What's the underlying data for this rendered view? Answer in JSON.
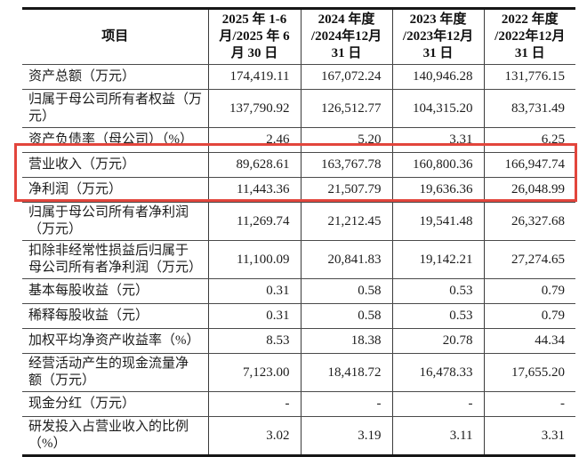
{
  "table": {
    "header": {
      "item_label": "项目",
      "periods": [
        "2025 年 1-6\n月/2025 年 6\n月 30 日",
        "2024 年度\n/2024年12月\n31 日",
        "2023 年度\n/2023年12月\n31 日",
        "2022 年度\n/2022年12月\n31 日"
      ]
    },
    "rows": [
      {
        "label": "资产总额（万元）",
        "values": [
          "174,419.11",
          "167,072.24",
          "140,946.28",
          "131,776.15"
        ],
        "highlighted": false
      },
      {
        "label": "归属于母公司所有者权益（万\n元）",
        "values": [
          "137,790.92",
          "126,512.77",
          "104,315.20",
          "83,731.49"
        ],
        "highlighted": false
      },
      {
        "label": "资产负债率（母公司）（%）",
        "values": [
          "2.46",
          "5.20",
          "3.31",
          "6.25"
        ],
        "highlighted": false
      },
      {
        "label": "营业收入（万元）",
        "values": [
          "89,628.61",
          "163,767.78",
          "160,800.36",
          "166,947.74"
        ],
        "highlighted": true
      },
      {
        "label": "净利润（万元）",
        "values": [
          "11,443.36",
          "21,507.79",
          "19,636.36",
          "26,048.99"
        ],
        "highlighted": true
      },
      {
        "label": "归属于母公司所有者净利润\n（万元）",
        "values": [
          "11,269.74",
          "21,212.45",
          "19,541.48",
          "26,327.68"
        ],
        "highlighted": false
      },
      {
        "label": "扣除非经常性损益后归属于\n母公司所有者净利润（万元）",
        "values": [
          "11,100.09",
          "20,841.83",
          "19,142.21",
          "27,274.65"
        ],
        "highlighted": false
      },
      {
        "label": "基本每股收益（元）",
        "values": [
          "0.31",
          "0.58",
          "0.53",
          "0.79"
        ],
        "highlighted": false
      },
      {
        "label": "稀释每股收益（元）",
        "values": [
          "0.31",
          "0.58",
          "0.53",
          "0.79"
        ],
        "highlighted": false
      },
      {
        "label": "加权平均净资产收益率（%）",
        "values": [
          "8.53",
          "18.38",
          "20.78",
          "44.34"
        ],
        "highlighted": false
      },
      {
        "label": "经营活动产生的现金流量净\n额（万元）",
        "values": [
          "7,123.00",
          "18,418.72",
          "16,478.33",
          "17,655.20"
        ],
        "highlighted": false
      },
      {
        "label": "现金分红（万元）",
        "values": [
          "-",
          "-",
          "-",
          "-"
        ],
        "highlighted": false
      },
      {
        "label": "研发投入占营业收入的比例\n（%）",
        "values": [
          "3.02",
          "3.19",
          "3.11",
          "3.31"
        ],
        "highlighted": false
      }
    ],
    "highlight_color": "#e2453c"
  }
}
